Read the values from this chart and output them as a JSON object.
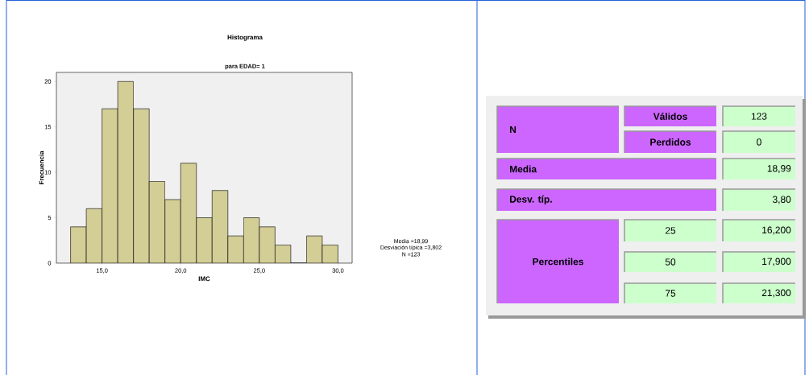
{
  "chart_data": [
    {
      "type": "histogram",
      "title": "Histograma",
      "subtitle": "para EDAD= 1",
      "xlabel": "IMC",
      "ylabel": "Frecuencia",
      "bins": [
        13,
        14,
        15,
        16,
        17,
        18,
        19,
        20,
        21,
        22,
        23,
        24,
        25,
        26,
        27,
        28,
        29,
        30
      ],
      "values": [
        4,
        6,
        17,
        20,
        17,
        9,
        7,
        11,
        5,
        8,
        3,
        5,
        4,
        2,
        0,
        3,
        2
      ],
      "color": "#d3cd96",
      "xlim": [
        12.1,
        30.9
      ],
      "ylim": [
        0,
        21
      ],
      "xticks": [
        {
          "value": 15,
          "label": "15,0"
        },
        {
          "value": 20,
          "label": "20,0"
        },
        {
          "value": 25,
          "label": "25,0"
        },
        {
          "value": 30,
          "label": "30,0"
        }
      ],
      "yticks": [
        0,
        5,
        10,
        15,
        20
      ],
      "annotations": [
        "Media =18,99",
        "Desviación típica =3,802",
        "N =123"
      ]
    },
    {
      "type": "other",
      "annotations": [
        "N",
        "Válidos",
        "123",
        "Perdidos",
        "0",
        "Media",
        "18,99",
        "Desv. típ.",
        "3,80",
        "Percentiles",
        "25",
        "16,200",
        "50",
        "17,900",
        "75",
        "21,300"
      ]
    }
  ]
}
